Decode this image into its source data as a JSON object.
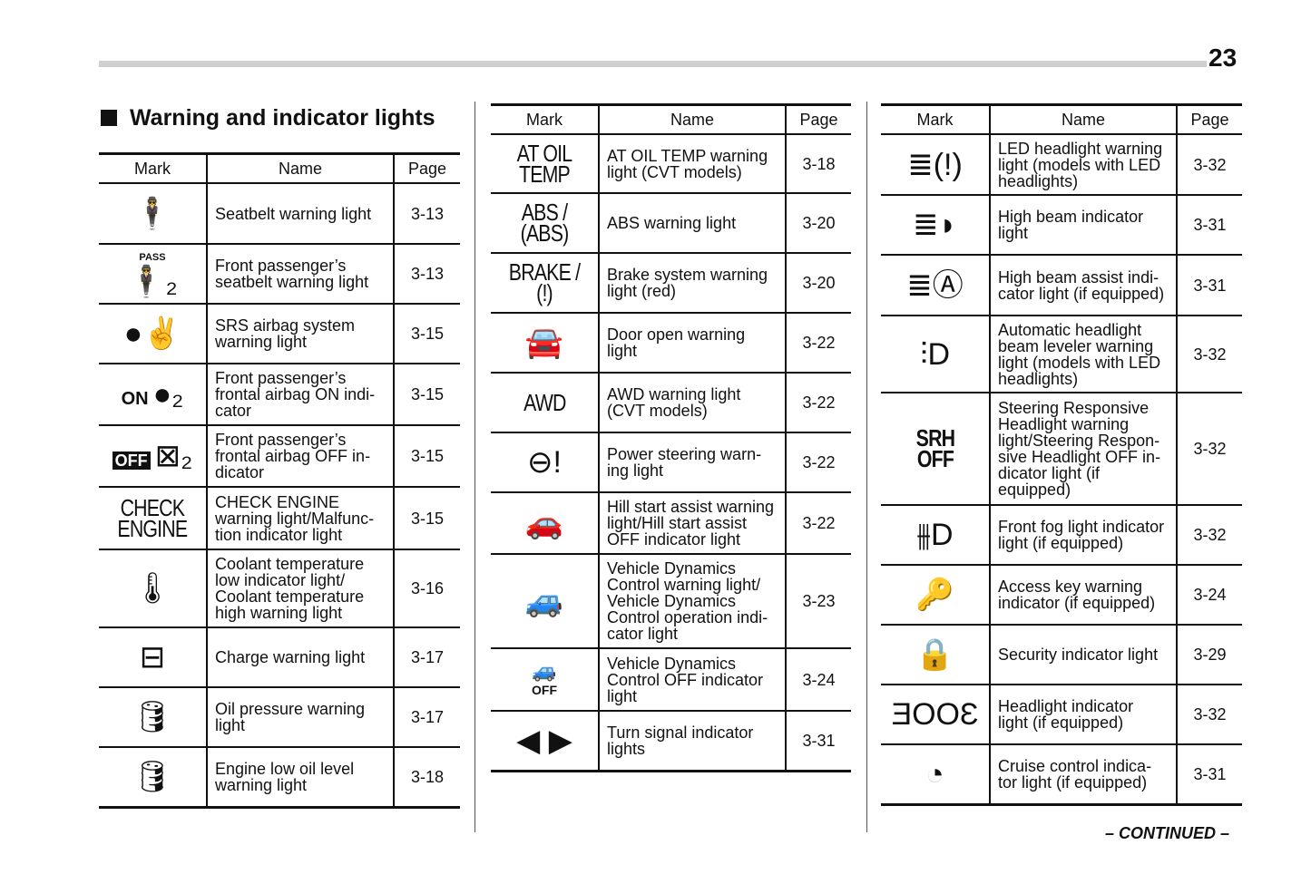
{
  "page_number": "23",
  "section_title": "Warning and indicator lights",
  "headers": {
    "mark": "Mark",
    "name": "Name",
    "page": "Page"
  },
  "tables": [
    {
      "rows": [
        {
          "icon": "seatbelt-icon",
          "glyph": "🕴",
          "name": "Seatbelt warning light",
          "page": "3-13"
        },
        {
          "icon": "passenger-seatbelt-icon",
          "mark_text": "PASS",
          "glyph": "🕴₂",
          "name": "Front passenger’s\nseatbelt warning light",
          "page": "3-13"
        },
        {
          "icon": "srs-airbag-icon",
          "glyph": "●✌",
          "name": "SRS airbag system\nwarning light",
          "page": "3-15"
        },
        {
          "icon": "airbag-on-icon",
          "mark_text": "ON",
          "glyph": "●₂",
          "name": "Front passenger’s\nfrontal airbag ON indi-\ncator",
          "page": "3-15"
        },
        {
          "icon": "airbag-off-icon",
          "mark_text": "OFF",
          "glyph": "⊠₂",
          "name": "Front passenger’s\nfrontal airbag OFF in-\ndicator",
          "page": "3-15"
        },
        {
          "icon": "check-engine-icon",
          "mark_text": "CHECK\nENGINE",
          "name": "CHECK ENGINE\nwarning light/Malfunc-\ntion indicator light",
          "page": "3-15"
        },
        {
          "icon": "coolant-temperature-icon",
          "glyph": "🌡",
          "name": "Coolant temperature\nlow indicator light/\nCoolant temperature\nhigh warning light",
          "page": "3-16"
        },
        {
          "icon": "battery-icon",
          "glyph": "⊟",
          "name": "Charge warning light",
          "page": "3-17"
        },
        {
          "icon": "oil-can-icon",
          "glyph": "🛢",
          "name": "Oil pressure warning\nlight",
          "page": "3-17"
        },
        {
          "icon": "low-oil-level-icon",
          "glyph": "🛢",
          "name": "Engine low oil level\nwarning light",
          "page": "3-18"
        }
      ]
    },
    {
      "rows": [
        {
          "icon": "at-oil-temp-icon",
          "mark_text": "AT OIL\nTEMP",
          "name": "AT OIL TEMP warning\nlight (CVT models)",
          "page": "3-18"
        },
        {
          "icon": "abs-icon",
          "mark_text": "ABS / (ABS)",
          "name": "ABS warning light",
          "page": "3-20"
        },
        {
          "icon": "brake-icon",
          "mark_text": "BRAKE / (!)",
          "name": "Brake system warning\nlight (red)",
          "page": "3-20"
        },
        {
          "icon": "door-open-icon",
          "glyph": "🚘",
          "name": "Door open warning\nlight",
          "page": "3-22"
        },
        {
          "icon": "awd-icon",
          "mark_text": "AWD",
          "name": "AWD warning light\n(CVT models)",
          "page": "3-22"
        },
        {
          "icon": "power-steering-icon",
          "glyph": "⊖!",
          "name": "Power steering warn-\ning light",
          "page": "3-22"
        },
        {
          "icon": "hill-start-assist-icon",
          "glyph": "🚗",
          "name": "Hill start assist warning\nlight/Hill start assist\nOFF indicator light",
          "page": "3-22"
        },
        {
          "icon": "vehicle-dynamics-icon",
          "glyph": "🚙",
          "name": "Vehicle Dynamics\nControl warning light/\nVehicle Dynamics\nControl operation indi-\ncator light",
          "page": "3-23"
        },
        {
          "icon": "vdc-off-icon",
          "mark_text": "OFF",
          "glyph": "🚙",
          "name": "Vehicle Dynamics\nControl OFF indicator\nlight",
          "page": "3-24"
        },
        {
          "icon": "turn-signal-icon",
          "glyph": "◀ ▶",
          "name": "Turn signal indicator\nlights",
          "page": "3-31"
        }
      ]
    },
    {
      "rows": [
        {
          "icon": "led-headlight-warning-icon",
          "glyph": "≣(!)",
          "name": "LED headlight warning\nlight (models with LED\nheadlights)",
          "page": "3-32"
        },
        {
          "icon": "high-beam-icon",
          "glyph": "≣◗",
          "name": "High beam indicator\nlight",
          "page": "3-31"
        },
        {
          "icon": "high-beam-assist-icon",
          "glyph": "≣Ⓐ",
          "name": "High beam assist indi-\ncator light (if equipped)",
          "page": "3-31"
        },
        {
          "icon": "headlight-leveler-icon",
          "glyph": "⫶D",
          "name": "Automatic headlight\nbeam leveler warning\nlight (models with LED\nheadlights)",
          "page": "3-32"
        },
        {
          "icon": "srh-off-icon",
          "mark_text": "SRH\nOFF",
          "name": "Steering Responsive\nHeadlight warning\nlight/Steering Respon-\nsive Headlight OFF in-\ndicator light (if\nequipped)",
          "page": "3-32"
        },
        {
          "icon": "front-fog-light-icon",
          "glyph": "⫵D",
          "name": "Front fog light indicator\nlight (if equipped)",
          "page": "3-32"
        },
        {
          "icon": "access-key-icon",
          "glyph": "🔑",
          "name": "Access key warning\nindicator (if equipped)",
          "page": "3-24"
        },
        {
          "icon": "security-icon",
          "glyph": "🔒",
          "name": "Security indicator light",
          "page": "3-29"
        },
        {
          "icon": "headlight-indicator-icon",
          "glyph": "ƎOOƐ",
          "name": "Headlight indicator\nlight (if equipped)",
          "page": "3-32"
        },
        {
          "icon": "cruise-control-icon",
          "glyph": "◔",
          "name": "Cruise control indica-\ntor light (if equipped)",
          "page": "3-31"
        }
      ]
    }
  ],
  "continued": "– CONTINUED –"
}
